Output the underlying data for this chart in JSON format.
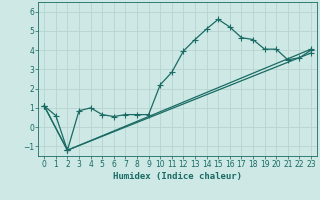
{
  "xlabel": "Humidex (Indice chaleur)",
  "bg_color": "#cde8e5",
  "grid_color": "#b8d4d0",
  "line_color": "#1a6b64",
  "xlim": [
    -0.5,
    23.5
  ],
  "ylim": [
    -1.5,
    6.5
  ],
  "yticks": [
    -1,
    0,
    1,
    2,
    3,
    4,
    5,
    6
  ],
  "xticks": [
    0,
    1,
    2,
    3,
    4,
    5,
    6,
    7,
    8,
    9,
    10,
    11,
    12,
    13,
    14,
    15,
    16,
    17,
    18,
    19,
    20,
    21,
    22,
    23
  ],
  "line1_x": [
    0,
    1,
    2,
    3,
    4,
    5,
    6,
    7,
    8,
    9,
    10,
    11,
    12,
    13,
    14,
    15,
    16,
    17,
    18,
    19,
    20,
    21,
    22,
    23
  ],
  "line1_y": [
    1.1,
    0.6,
    -1.2,
    0.85,
    1.0,
    0.65,
    0.55,
    0.65,
    0.65,
    0.65,
    2.2,
    2.85,
    3.95,
    4.55,
    5.1,
    5.6,
    5.2,
    4.65,
    4.55,
    4.05,
    4.05,
    3.5,
    3.6,
    4.0
  ],
  "line2_x": [
    0,
    2,
    23
  ],
  "line2_y": [
    1.1,
    -1.2,
    4.05
  ],
  "line3_x": [
    0,
    2,
    23
  ],
  "line3_y": [
    1.1,
    -1.2,
    3.85
  ],
  "xlabel_fontsize": 6.5,
  "tick_fontsize": 5.5
}
